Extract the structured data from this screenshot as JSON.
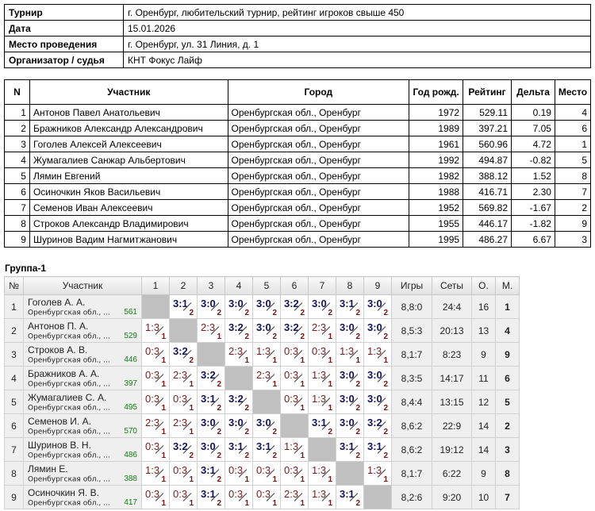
{
  "info": [
    {
      "key": "Турнир",
      "value": "г. Оренбург, любительский турнир, рейтинг игроков свыше 450"
    },
    {
      "key": "Дата",
      "value": "15.01.2026"
    },
    {
      "key": "Место проведения",
      "value": "г. Оренбург, ул. 31 Линия, д. 1"
    },
    {
      "key": "Организатор / судья",
      "value": "КНТ Фокус Лайф"
    }
  ],
  "participants": {
    "headers": [
      "N",
      "Участник",
      "Город",
      "Год рожд.",
      "Рейтинг",
      "Дельта",
      "Место"
    ],
    "rows": [
      [
        "1",
        "Антонов Павел Анатольевич",
        "Оренбургская обл., Оренбург",
        "1972",
        "529.11",
        "0.19",
        "4"
      ],
      [
        "2",
        "Бражников Александр Александрович",
        "Оренбургская обл., Оренбург",
        "1989",
        "397.21",
        "7.05",
        "6"
      ],
      [
        "3",
        "Гоголев Алексей Алексеевич",
        "Оренбургская обл., Оренбург",
        "1961",
        "560.96",
        "4.72",
        "1"
      ],
      [
        "4",
        "Жумагалиев Санжар Альбертович",
        "Оренбургская обл., Оренбург",
        "1992",
        "494.87",
        "-0.82",
        "5"
      ],
      [
        "5",
        "Лямин Евгений",
        "Оренбургская обл., Оренбург",
        "1982",
        "388.12",
        "1.52",
        "8"
      ],
      [
        "6",
        "Осиночкин Яков Васильевич",
        "Оренбургская обл., Оренбург",
        "1988",
        "416.71",
        "2.30",
        "7"
      ],
      [
        "7",
        "Семенов Иван Алексеевич",
        "Оренбургская обл., Оренбург",
        "1952",
        "569.82",
        "-1.67",
        "2"
      ],
      [
        "8",
        "Строков Александр Владимирович",
        "Оренбургская обл., Оренбург",
        "1955",
        "446.17",
        "-1.82",
        "9"
      ],
      [
        "9",
        "Шуринов Вадим Нагмитжанович",
        "Оренбургская обл., Оренбург",
        "1995",
        "486.27",
        "6.67",
        "3"
      ]
    ]
  },
  "group": {
    "title": "Группа-1",
    "headers": [
      "№",
      "Участник",
      "1",
      "2",
      "3",
      "4",
      "5",
      "6",
      "7",
      "8",
      "9",
      "Игры",
      "Сеты",
      "О.",
      "М."
    ],
    "rows": [
      {
        "n": "1",
        "name": "Гоголев А. А.",
        "city": "Оренбургская обл., ...",
        "rating": "561",
        "scores": [
          "",
          "3:1",
          "3:0",
          "3:0",
          "3:0",
          "3:2",
          "3:0",
          "3:1",
          "3:0"
        ],
        "points": [
          "",
          "2",
          "2",
          "2",
          "2",
          "2",
          "2",
          "2",
          "2"
        ],
        "games": "8,8:0",
        "sets": "24:4",
        "o": "16",
        "m": "1"
      },
      {
        "n": "2",
        "name": "Антонов П. А.",
        "city": "Оренбургская обл., ...",
        "rating": "529",
        "scores": [
          "1:3",
          "",
          "2:3",
          "3:2",
          "3:0",
          "3:2",
          "2:3",
          "3:0",
          "3:0"
        ],
        "points": [
          "1",
          "",
          "1",
          "2",
          "2",
          "2",
          "1",
          "2",
          "2"
        ],
        "games": "8,5:3",
        "sets": "20:13",
        "o": "13",
        "m": "4"
      },
      {
        "n": "3",
        "name": "Строков А. В.",
        "city": "Оренбургская обл., ...",
        "rating": "446",
        "scores": [
          "0:3",
          "3:2",
          "",
          "2:3",
          "1:3",
          "0:3",
          "0:3",
          "1:3",
          "1:3"
        ],
        "points": [
          "1",
          "2",
          "",
          "1",
          "1",
          "1",
          "1",
          "1",
          "1"
        ],
        "games": "8,1:7",
        "sets": "8:23",
        "o": "9",
        "m": "9"
      },
      {
        "n": "4",
        "name": "Бражников А. А.",
        "city": "Оренбургская обл., ...",
        "rating": "397",
        "scores": [
          "0:3",
          "2:3",
          "3:2",
          "",
          "2:3",
          "0:3",
          "1:3",
          "3:0",
          "3:0"
        ],
        "points": [
          "1",
          "1",
          "2",
          "",
          "1",
          "1",
          "1",
          "2",
          "2"
        ],
        "games": "8,3:5",
        "sets": "14:17",
        "o": "11",
        "m": "6"
      },
      {
        "n": "5",
        "name": "Жумагалиев С. А.",
        "city": "Оренбургская обл., ...",
        "rating": "495",
        "scores": [
          "0:3",
          "0:3",
          "3:1",
          "3:2",
          "",
          "0:3",
          "1:3",
          "3:0",
          "3:0"
        ],
        "points": [
          "1",
          "1",
          "2",
          "2",
          "",
          "1",
          "1",
          "2",
          "2"
        ],
        "games": "8,4:4",
        "sets": "13:15",
        "o": "12",
        "m": "5"
      },
      {
        "n": "6",
        "name": "Семенов И. А.",
        "city": "Оренбургская обл., ...",
        "rating": "570",
        "scores": [
          "2:3",
          "2:3",
          "3:0",
          "3:0",
          "3:0",
          "",
          "3:1",
          "3:0",
          "3:2"
        ],
        "points": [
          "1",
          "1",
          "2",
          "2",
          "2",
          "",
          "2",
          "2",
          "2"
        ],
        "games": "8,6:2",
        "sets": "22:9",
        "o": "14",
        "m": "2"
      },
      {
        "n": "7",
        "name": "Шуринов В. Н.",
        "city": "Оренбургская обл., ...",
        "rating": "486",
        "scores": [
          "0:3",
          "3:2",
          "3:0",
          "3:1",
          "3:1",
          "1:3",
          "",
          "3:1",
          "3:1"
        ],
        "points": [
          "1",
          "2",
          "2",
          "2",
          "2",
          "1",
          "",
          "2",
          "2"
        ],
        "games": "8,6:2",
        "sets": "19:12",
        "o": "14",
        "m": "3"
      },
      {
        "n": "8",
        "name": "Лямин Е.",
        "city": "Оренбургская обл., ...",
        "rating": "388",
        "scores": [
          "1:3",
          "0:3",
          "3:1",
          "0:3",
          "0:3",
          "0:3",
          "1:3",
          "",
          "1:3"
        ],
        "points": [
          "1",
          "1",
          "2",
          "1",
          "1",
          "1",
          "1",
          "",
          "1"
        ],
        "games": "8,1:7",
        "sets": "6:22",
        "o": "9",
        "m": "8"
      },
      {
        "n": "9",
        "name": "Осиночкин Я. В.",
        "city": "Оренбургская обл., ...",
        "rating": "417",
        "scores": [
          "0:3",
          "0:3",
          "3:1",
          "0:3",
          "0:3",
          "2:3",
          "1:3",
          "3:1",
          ""
        ],
        "points": [
          "1",
          "1",
          "2",
          "1",
          "1",
          "1",
          "1",
          "2",
          ""
        ],
        "games": "8,2:6",
        "sets": "9:20",
        "o": "10",
        "m": "7"
      }
    ]
  }
}
